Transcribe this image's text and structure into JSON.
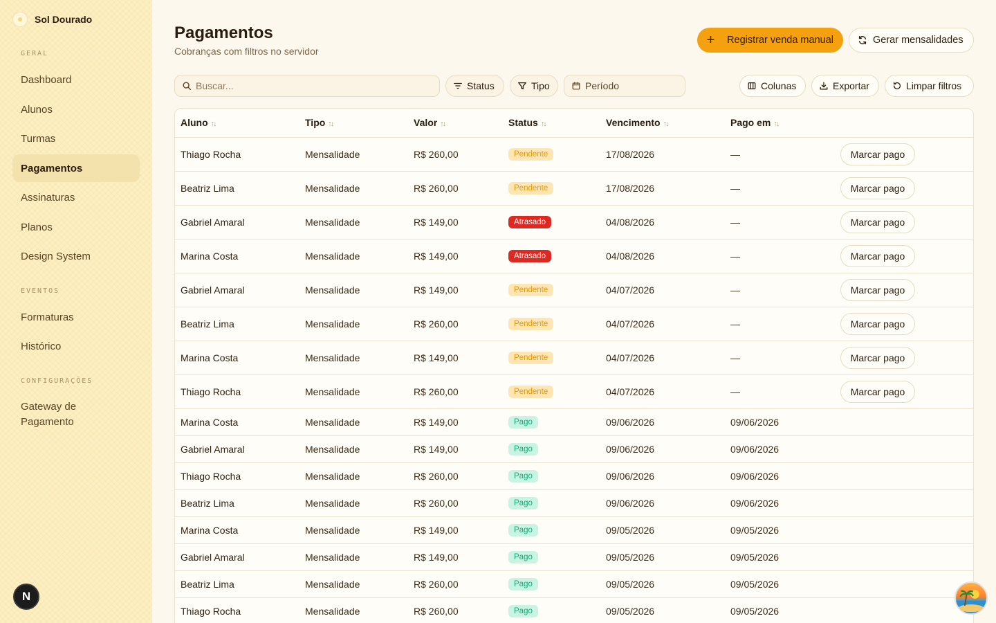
{
  "brand": {
    "name": "Sol Dourado"
  },
  "sidebar": {
    "sections": [
      {
        "label": "GERAL",
        "items": [
          "Dashboard",
          "Alunos",
          "Turmas",
          "Pagamentos",
          "Assinaturas",
          "Planos",
          "Design System"
        ]
      },
      {
        "label": "EVENTOS",
        "items": [
          "Formaturas",
          "Histórico"
        ]
      },
      {
        "label": "CONFIGURAÇÕES",
        "items": [
          "Gateway de Pagamento"
        ]
      }
    ],
    "active": "Pagamentos",
    "badge": "N"
  },
  "header": {
    "title": "Pagamentos",
    "subtitle": "Cobranças com filtros no servidor",
    "primary_button": "Registrar venda manual",
    "secondary_button": "Gerar mensalidades"
  },
  "filters": {
    "search_placeholder": "Buscar...",
    "status": "Status",
    "tipo": "Tipo",
    "periodo": "Período",
    "colunas": "Colunas",
    "exportar": "Exportar",
    "limpar": "Limpar filtros"
  },
  "table": {
    "columns": [
      "Aluno",
      "Tipo",
      "Valor",
      "Status",
      "Vencimento",
      "Pago em"
    ],
    "action_label": "Marcar pago",
    "rows": [
      {
        "aluno": "Thiago Rocha",
        "tipo": "Mensalidade",
        "valor": "R$ 260,00",
        "status": "Pendente",
        "vencimento": "17/08/2026",
        "pago_em": "—"
      },
      {
        "aluno": "Beatriz Lima",
        "tipo": "Mensalidade",
        "valor": "R$ 260,00",
        "status": "Pendente",
        "vencimento": "17/08/2026",
        "pago_em": "—"
      },
      {
        "aluno": "Gabriel Amaral",
        "tipo": "Mensalidade",
        "valor": "R$ 149,00",
        "status": "Atrasado",
        "vencimento": "04/08/2026",
        "pago_em": "—"
      },
      {
        "aluno": "Marina Costa",
        "tipo": "Mensalidade",
        "valor": "R$ 149,00",
        "status": "Atrasado",
        "vencimento": "04/08/2026",
        "pago_em": "—"
      },
      {
        "aluno": "Gabriel Amaral",
        "tipo": "Mensalidade",
        "valor": "R$ 149,00",
        "status": "Pendente",
        "vencimento": "04/07/2026",
        "pago_em": "—"
      },
      {
        "aluno": "Beatriz Lima",
        "tipo": "Mensalidade",
        "valor": "R$ 260,00",
        "status": "Pendente",
        "vencimento": "04/07/2026",
        "pago_em": "—"
      },
      {
        "aluno": "Marina Costa",
        "tipo": "Mensalidade",
        "valor": "R$ 149,00",
        "status": "Pendente",
        "vencimento": "04/07/2026",
        "pago_em": "—"
      },
      {
        "aluno": "Thiago Rocha",
        "tipo": "Mensalidade",
        "valor": "R$ 260,00",
        "status": "Pendente",
        "vencimento": "04/07/2026",
        "pago_em": "—"
      },
      {
        "aluno": "Marina Costa",
        "tipo": "Mensalidade",
        "valor": "R$ 149,00",
        "status": "Pago",
        "vencimento": "09/06/2026",
        "pago_em": "09/06/2026"
      },
      {
        "aluno": "Gabriel Amaral",
        "tipo": "Mensalidade",
        "valor": "R$ 149,00",
        "status": "Pago",
        "vencimento": "09/06/2026",
        "pago_em": "09/06/2026"
      },
      {
        "aluno": "Thiago Rocha",
        "tipo": "Mensalidade",
        "valor": "R$ 260,00",
        "status": "Pago",
        "vencimento": "09/06/2026",
        "pago_em": "09/06/2026"
      },
      {
        "aluno": "Beatriz Lima",
        "tipo": "Mensalidade",
        "valor": "R$ 260,00",
        "status": "Pago",
        "vencimento": "09/06/2026",
        "pago_em": "09/06/2026"
      },
      {
        "aluno": "Marina Costa",
        "tipo": "Mensalidade",
        "valor": "R$ 149,00",
        "status": "Pago",
        "vencimento": "09/05/2026",
        "pago_em": "09/05/2026"
      },
      {
        "aluno": "Gabriel Amaral",
        "tipo": "Mensalidade",
        "valor": "R$ 149,00",
        "status": "Pago",
        "vencimento": "09/05/2026",
        "pago_em": "09/05/2026"
      },
      {
        "aluno": "Beatriz Lima",
        "tipo": "Mensalidade",
        "valor": "R$ 260,00",
        "status": "Pago",
        "vencimento": "09/05/2026",
        "pago_em": "09/05/2026"
      },
      {
        "aluno": "Thiago Rocha",
        "tipo": "Mensalidade",
        "valor": "R$ 260,00",
        "status": "Pago",
        "vencimento": "09/05/2026",
        "pago_em": "09/05/2026"
      }
    ]
  },
  "colors": {
    "accent": "#f5a00e",
    "sidebar_bg": "#fcefc2",
    "pendente": "#e59a0b",
    "atrasado": "#dc2a22",
    "pago": "#18a878"
  },
  "icons": [
    "sun-icon",
    "plus-icon",
    "refresh-icon",
    "search-icon",
    "filter-lines-icon",
    "funnel-icon",
    "calendar-icon",
    "columns-icon",
    "download-icon",
    "reset-icon",
    "sort-icon"
  ]
}
